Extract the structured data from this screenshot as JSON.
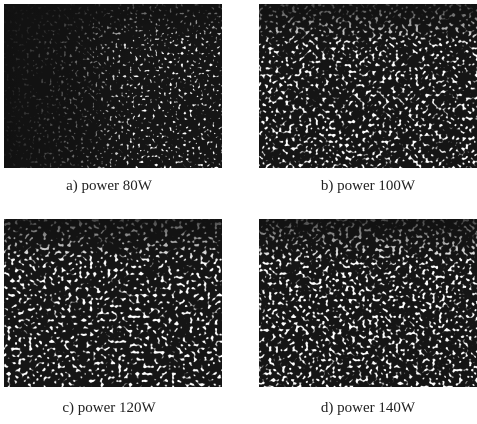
{
  "figure": {
    "panels": [
      {
        "caption": "a) power 80W"
      },
      {
        "caption": "b) power 100W"
      },
      {
        "caption": "c) power 120W"
      },
      {
        "caption": "d) power 140W"
      }
    ]
  }
}
